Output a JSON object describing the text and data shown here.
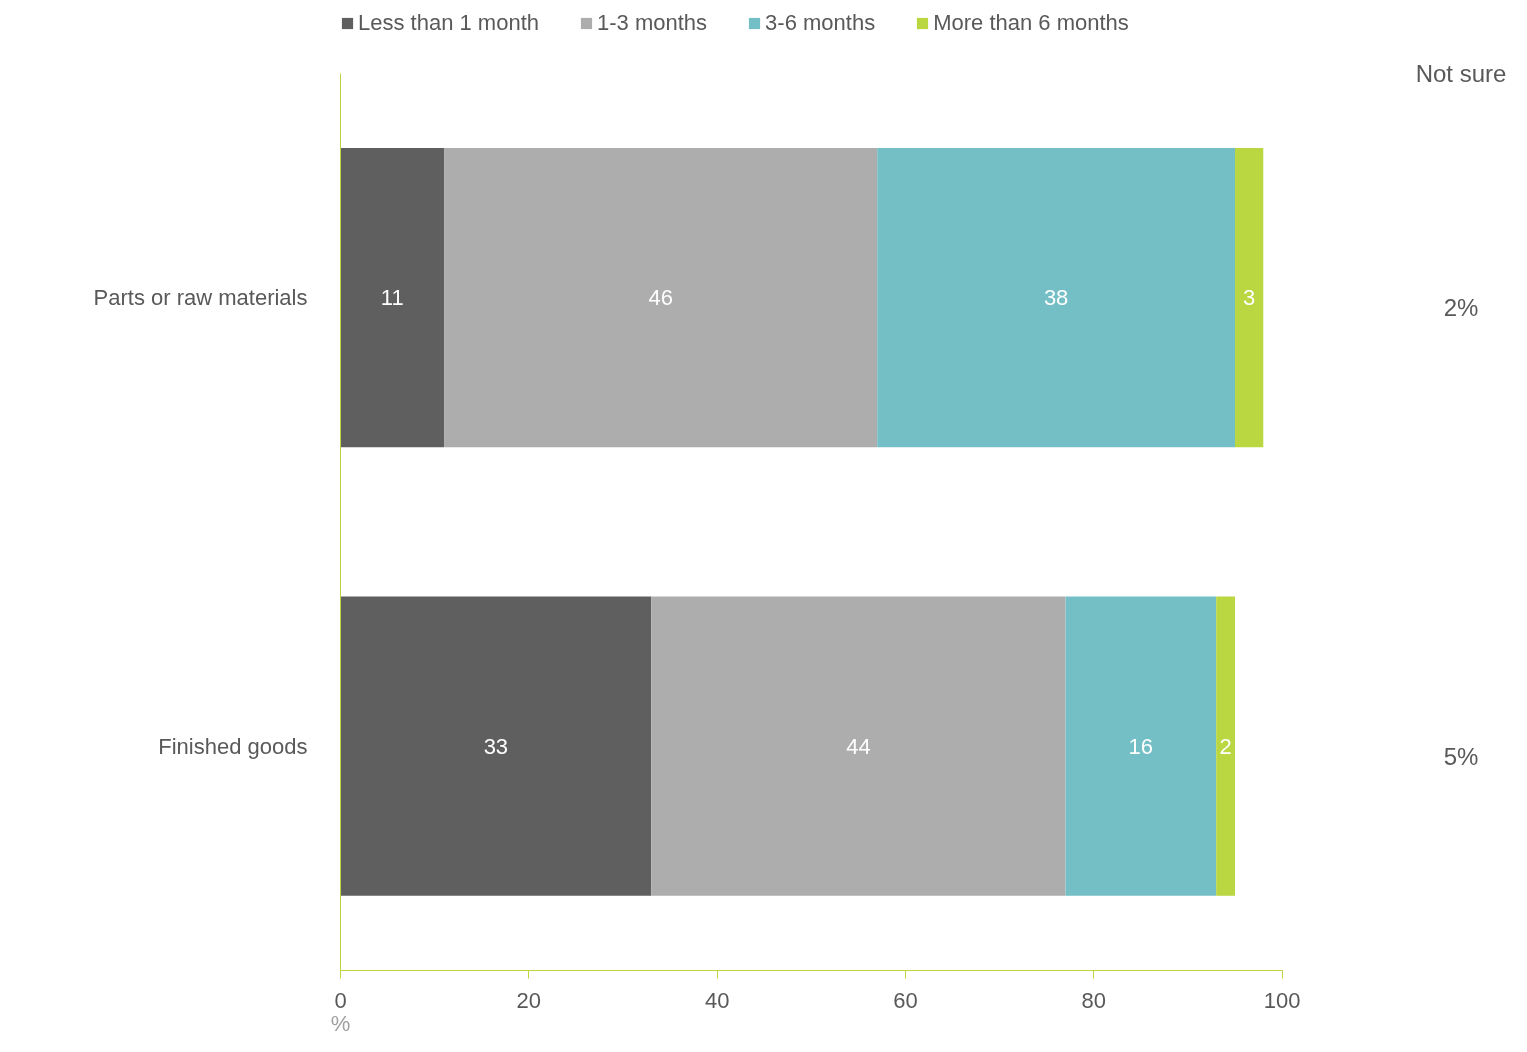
{
  "chart_data": {
    "type": "bar",
    "orientation": "horizontal",
    "stacked": true,
    "categories": [
      "Parts or raw materials",
      "Finished goods"
    ],
    "series": [
      {
        "name": "Less than 1 month",
        "color": "#5f5f5f",
        "values": [
          11,
          33
        ]
      },
      {
        "name": "1-3 months",
        "color": "#adadad",
        "values": [
          46,
          44
        ]
      },
      {
        "name": "3-6 months",
        "color": "#73bfc5",
        "values": [
          38,
          16
        ]
      },
      {
        "name": "More than 6 months",
        "color": "#bad641",
        "values": [
          3,
          2
        ]
      }
    ],
    "xlim": [
      0,
      100
    ],
    "xticks": [
      0,
      20,
      40,
      60,
      80,
      100
    ],
    "xlabel": "%",
    "data_labels": true,
    "legend": "top",
    "grid": false,
    "annotations": [
      "Not sure",
      "2%",
      "5%"
    ]
  }
}
